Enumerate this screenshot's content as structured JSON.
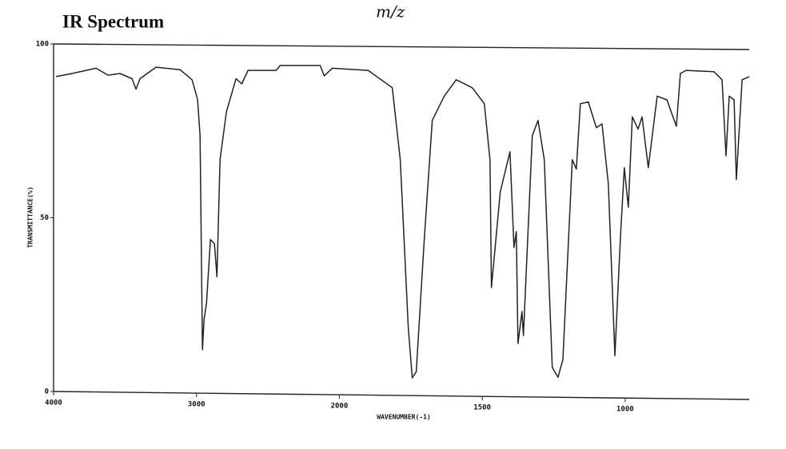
{
  "chart_data": {
    "type": "line",
    "title": "IR Spectrum",
    "annotation": "m/z",
    "x_label": "WAVENUMBER(-1)",
    "y_label": "TRANSMITTANCE(%)",
    "xlim": [
      4000,
      566
    ],
    "xscale": "piecewise",
    "xscale_break": 2000,
    "xticks": [
      4000,
      3000,
      2000,
      1500,
      1000
    ],
    "ylim": [
      0,
      100
    ],
    "yticks": [
      0,
      50,
      100
    ],
    "color": "#222222",
    "grid": false,
    "x": [
      3983,
      3871,
      3703,
      3619,
      3535,
      3451,
      3423,
      3395,
      3283,
      3115,
      3031,
      2992,
      2975,
      2958,
      2947,
      2930,
      2902,
      2874,
      2857,
      2835,
      2790,
      2723,
      2683,
      2639,
      2443,
      2415,
      2134,
      2106,
      2050,
      1899,
      1815,
      1787,
      1759,
      1745,
      1731,
      1703,
      1675,
      1633,
      1591,
      1535,
      1493,
      1473,
      1468,
      1437,
      1403,
      1389,
      1381,
      1375,
      1361,
      1356,
      1325,
      1305,
      1283,
      1255,
      1235,
      1218,
      1185,
      1171,
      1157,
      1129,
      1101,
      1081,
      1059,
      1036,
      1017,
      1003,
      989,
      975,
      955,
      941,
      919,
      888,
      854,
      821,
      807,
      787,
      689,
      661,
      647,
      636,
      619,
      611,
      591,
      566
    ],
    "values": [
      90.6,
      91.5,
      93,
      91,
      91.5,
      90,
      87,
      90,
      93.3,
      92.6,
      89.7,
      84,
      73.6,
      12,
      20.7,
      25.3,
      43.7,
      42.5,
      33,
      66.7,
      80.5,
      90,
      88.5,
      92.4,
      92.4,
      93.8,
      93.8,
      90.8,
      93,
      92.4,
      87.4,
      66.7,
      18.4,
      3.9,
      5.7,
      43.7,
      78,
      85,
      89.7,
      87.4,
      82.8,
      66.7,
      29.9,
      57.5,
      69,
      41.4,
      46,
      13.8,
      23,
      16.1,
      73.6,
      78,
      66.7,
      6.9,
      4.1,
      9.2,
      66.7,
      64,
      82.8,
      83.3,
      75.9,
      77,
      59.8,
      10.3,
      43.7,
      64.4,
      53,
      79,
      75.5,
      79,
      64.4,
      85,
      83.9,
      76.3,
      91.5,
      92.4,
      92,
      89.7,
      67.8,
      85,
      83.9,
      61,
      89.7,
      90.6
    ]
  }
}
